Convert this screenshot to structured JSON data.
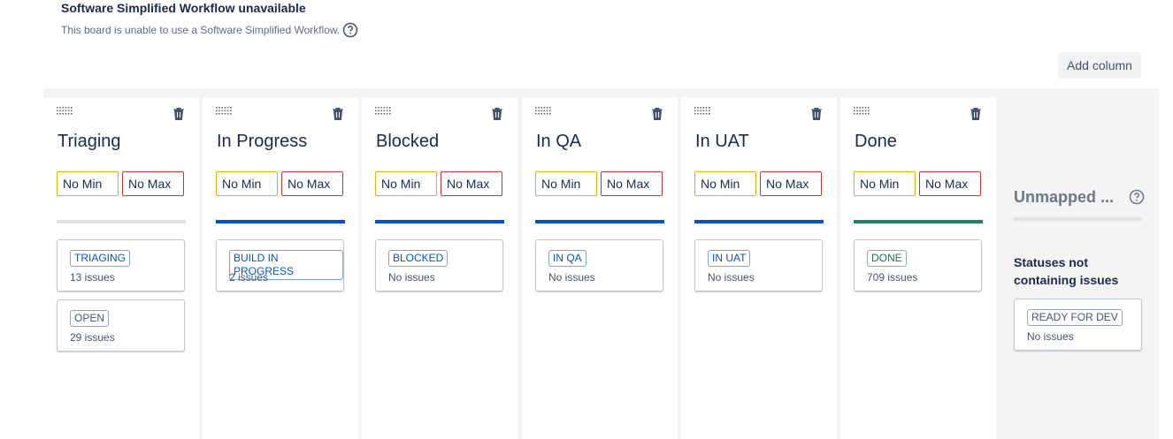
{
  "header": {
    "title": "Software Simplified Workflow unavailable",
    "subtitle": "This board is unable to use a Software Simplified Workflow."
  },
  "add_column": "Add column",
  "columns": [
    {
      "title": "Triaging",
      "min": "No Min",
      "max": "No Max",
      "color": "#dfe1e6",
      "statuses": [
        {
          "name": "TRIAGING",
          "count": "13 issues",
          "color": "#0055cc"
        },
        {
          "name": "OPEN",
          "count": "29 issues",
          "color": "#44546f"
        }
      ]
    },
    {
      "title": "In Progress",
      "min": "No Min",
      "max": "No Max",
      "color": "#0052cc",
      "statuses": [
        {
          "name": "BUILD IN PROGRESS",
          "count": "2 issues",
          "color": "#0055cc"
        }
      ]
    },
    {
      "title": "Blocked",
      "min": "No Min",
      "max": "No Max",
      "color": "#0052cc",
      "statuses": [
        {
          "name": "BLOCKED",
          "count": "No issues",
          "color": "#0055cc"
        }
      ]
    },
    {
      "title": "In QA",
      "min": "No Min",
      "max": "No Max",
      "color": "#0052cc",
      "statuses": [
        {
          "name": "IN QA",
          "count": "No issues",
          "color": "#0055cc"
        }
      ]
    },
    {
      "title": "In UAT",
      "min": "No Min",
      "max": "No Max",
      "color": "#0052cc",
      "statuses": [
        {
          "name": "IN UAT",
          "count": "No issues",
          "color": "#0055cc"
        }
      ]
    },
    {
      "title": "Done",
      "min": "No Min",
      "max": "No Max",
      "color": "#1f845a",
      "statuses": [
        {
          "name": "DONE",
          "count": "709 issues",
          "color": "#216e4e"
        }
      ]
    }
  ],
  "unmapped": {
    "title": "Unmapped ...",
    "note": "Statuses not containing issues",
    "color": "#dfe1e6",
    "statuses": [
      {
        "name": "READY FOR DEV",
        "count": "No issues",
        "color": "#44546f"
      }
    ]
  }
}
